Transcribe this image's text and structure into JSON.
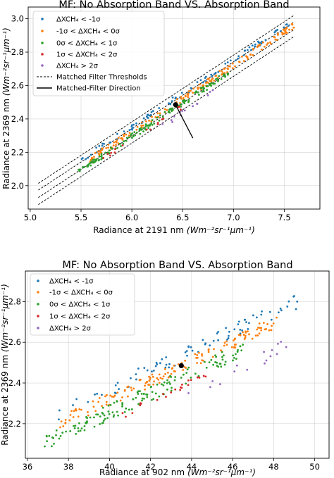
{
  "chart_data": [
    {
      "type": "scatter",
      "title": "MF: No Absorption Band VS. Absorption Band",
      "xlabel": "Radiance at 2191 nm",
      "xlabel_unit": "(Wm⁻²sr⁻¹μm⁻¹)",
      "ylabel": "Radiance at 2369 nm",
      "ylabel_unit": "(Wm⁻²sr⁻¹μm⁻¹)",
      "xlim": [
        4.98,
        7.85
      ],
      "ylim": [
        1.86,
        3.07
      ],
      "xticks": [
        "5.0",
        "5.5",
        "6.0",
        "6.5",
        "7.0",
        "7.5"
      ],
      "xtick_values": [
        5.0,
        5.5,
        6.0,
        6.5,
        7.0,
        7.5
      ],
      "yticks": [
        "2.0",
        "2.2",
        "2.4",
        "2.6",
        "2.8",
        "3.0"
      ],
      "ytick_values": [
        2.0,
        2.2,
        2.4,
        2.6,
        2.8,
        3.0
      ],
      "grid": true,
      "legend_position": "upper-left",
      "series": [
        {
          "name": "ΔXCH₄ < -1σ",
          "color": "#1f77b4",
          "trend": {
            "slope": 0.4,
            "intercept": -0.082
          },
          "offset_range": [
            0.015,
            0.05
          ],
          "x_range": [
            5.5,
            7.55
          ],
          "count": 95
        },
        {
          "name": "-1σ < ΔXCH₄ < 0σ",
          "color": "#ff7f0e",
          "trend": {
            "slope": 0.4,
            "intercept": -0.082
          },
          "offset_range": [
            -0.015,
            0.025
          ],
          "x_range": [
            5.55,
            7.6
          ],
          "count": 170
        },
        {
          "name": "0σ < ΔXCH₄ < 1σ",
          "color": "#2ca02c",
          "trend": {
            "slope": 0.4,
            "intercept": -0.082
          },
          "offset_range": [
            -0.04,
            -0.005
          ],
          "x_range": [
            5.45,
            6.95
          ],
          "count": 150
        },
        {
          "name": "1σ < ΔXCH₄ < 2σ",
          "color": "#d62728",
          "trend": {
            "slope": 0.4,
            "intercept": -0.082
          },
          "offset_range": [
            -0.055,
            -0.03
          ],
          "x_range": [
            5.7,
            6.6
          ],
          "count": 16
        },
        {
          "name": "ΔXCH₄ > 2σ",
          "color": "#9467bd",
          "trend": {
            "slope": 0.4,
            "intercept": -0.082
          },
          "offset_range": [
            -0.1,
            -0.06
          ],
          "x_range": [
            6.2,
            6.85
          ],
          "count": 14
        }
      ],
      "threshold_lines": {
        "name": "Matched Filter Thresholds",
        "slope": 0.4,
        "intercepts": [
          -0.018,
          -0.058,
          -0.103,
          -0.145
        ],
        "x_range": [
          5.08,
          7.6
        ]
      },
      "direction_line": {
        "name": "Matched-Filter Direction",
        "x": [
          6.43,
          6.6
        ],
        "y": [
          2.485,
          2.285
        ]
      },
      "center_point": {
        "x": 6.43,
        "y": 2.485
      }
    },
    {
      "type": "scatter",
      "title": "MF: No Absorption Band VS. Absorption Band",
      "xlabel": "Radiance at 902 nm",
      "xlabel_unit": "(Wm⁻²sr⁻¹μm⁻¹)",
      "ylabel": "Radiance at 2369 nm",
      "ylabel_unit": "(Wm⁻²sr⁻¹μm⁻¹)",
      "xlim": [
        35.9,
        50.7
      ],
      "ylim": [
        2.03,
        2.95
      ],
      "xticks": [
        "36",
        "38",
        "40",
        "42",
        "44",
        "46",
        "48",
        "50"
      ],
      "xtick_values": [
        36,
        38,
        40,
        42,
        44,
        46,
        48,
        50
      ],
      "yticks": [
        "2.2",
        "2.4",
        "2.6",
        "2.8"
      ],
      "ytick_values": [
        2.2,
        2.4,
        2.6,
        2.8
      ],
      "grid": true,
      "legend_position": "upper-left",
      "series": [
        {
          "name": "ΔXCH₄ < -1σ",
          "color": "#1f77b4",
          "trend": {
            "slope": 0.047,
            "intercept": 0.435
          },
          "offset_range": [
            0.02,
            0.09
          ],
          "x_range": [
            37.5,
            49.2
          ],
          "count": 80
        },
        {
          "name": "-1σ < ΔXCH₄ < 0σ",
          "color": "#ff7f0e",
          "trend": {
            "slope": 0.047,
            "intercept": 0.435
          },
          "offset_range": [
            -0.03,
            0.035
          ],
          "x_range": [
            37.5,
            48.3
          ],
          "count": 150
        },
        {
          "name": "0σ < ΔXCH₄ < 1σ",
          "color": "#2ca02c",
          "trend": {
            "slope": 0.047,
            "intercept": 0.435
          },
          "offset_range": [
            -0.1,
            -0.02
          ],
          "x_range": [
            36.8,
            46.5
          ],
          "count": 150
        },
        {
          "name": "1σ < ΔXCH₄ < 2σ",
          "color": "#d62728",
          "trend": {
            "slope": 0.047,
            "intercept": 0.435
          },
          "offset_range": [
            -0.12,
            -0.08
          ],
          "x_range": [
            40.5,
            44.8
          ],
          "count": 22
        },
        {
          "name": "ΔXCH₄ > 2σ",
          "color": "#9467bd",
          "trend": {
            "slope": 0.047,
            "intercept": 0.435
          },
          "offset_range": [
            -0.18,
            -0.1
          ],
          "x_range": [
            43.5,
            49.3
          ],
          "count": 16
        }
      ],
      "center_point": {
        "x": 43.5,
        "y": 2.485
      }
    }
  ]
}
